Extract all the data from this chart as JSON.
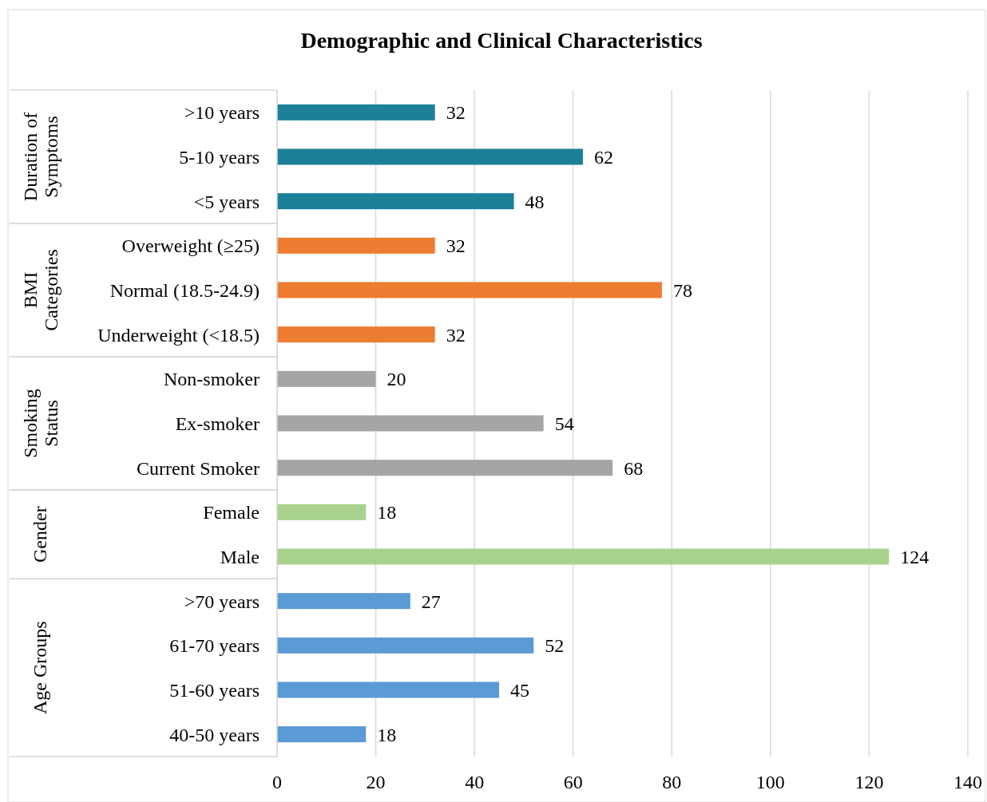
{
  "chart_data": {
    "type": "bar",
    "orientation": "horizontal",
    "title": "Demographic and Clinical Characteristics",
    "categories": [
      ">10 years",
      "5-10 years",
      "<5 years",
      "Overweight (≥25)",
      "Normal (18.5-24.9)",
      "Underweight (<18.5)",
      "Non-smoker",
      "Ex-smoker",
      "Current Smoker",
      "Female",
      "Male",
      ">70 years",
      "61-70 years",
      "51-60 years",
      "40-50 years"
    ],
    "values": [
      32,
      62,
      48,
      32,
      78,
      32,
      20,
      54,
      68,
      18,
      124,
      27,
      52,
      45,
      18
    ],
    "colors": [
      "#1b8098",
      "#1b8098",
      "#1b8098",
      "#ed7d31",
      "#ed7d31",
      "#ed7d31",
      "#a5a5a5",
      "#a5a5a5",
      "#a5a5a5",
      "#a9d18e",
      "#a9d18e",
      "#5b9bd5",
      "#5b9bd5",
      "#5b9bd5",
      "#5b9bd5"
    ],
    "annotations": [
      "Duration of Symptoms",
      "BMI Categories",
      "Smoking Status",
      "Gender",
      "Age Groups"
    ],
    "xlim": [
      0,
      140
    ],
    "xticks": [
      0,
      20,
      40,
      60,
      80,
      100,
      120,
      140
    ],
    "grid": "x",
    "data_labels": true
  }
}
